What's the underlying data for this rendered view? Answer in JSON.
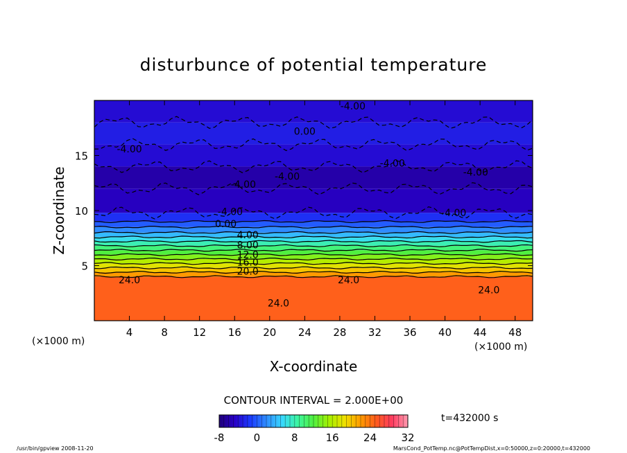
{
  "chart_data": {
    "type": "heatmap",
    "title": "disturbunce of potential temperature",
    "xlabel": "X-coordinate",
    "ylabel": "Z-coordinate",
    "x_unit": "(×1000 m)",
    "y_unit": "(×1000 m)",
    "xlim": [
      0,
      50
    ],
    "ylim": [
      0,
      20
    ],
    "xticks": [
      4,
      8,
      12,
      16,
      20,
      24,
      28,
      32,
      36,
      40,
      44,
      48
    ],
    "yticks": [
      5,
      10,
      15
    ],
    "layers": [
      {
        "z_from": 0.0,
        "z_to": 4.0,
        "value": 25
      },
      {
        "z_from": 4.0,
        "z_to": 4.4,
        "value": 22
      },
      {
        "z_from": 4.4,
        "z_to": 4.8,
        "value": 20
      },
      {
        "z_from": 4.8,
        "z_to": 5.2,
        "value": 18
      },
      {
        "z_from": 5.2,
        "z_to": 5.6,
        "value": 16
      },
      {
        "z_from": 5.6,
        "z_to": 6.0,
        "value": 14
      },
      {
        "z_from": 6.0,
        "z_to": 6.4,
        "value": 12
      },
      {
        "z_from": 6.4,
        "z_to": 6.8,
        "value": 10
      },
      {
        "z_from": 6.8,
        "z_to": 7.2,
        "value": 8
      },
      {
        "z_from": 7.2,
        "z_to": 7.6,
        "value": 6
      },
      {
        "z_from": 7.6,
        "z_to": 8.0,
        "value": 4
      },
      {
        "z_from": 8.0,
        "z_to": 8.5,
        "value": 2
      },
      {
        "z_from": 8.5,
        "z_to": 9.0,
        "value": 0
      },
      {
        "z_from": 9.0,
        "z_to": 9.8,
        "value": -2
      },
      {
        "z_from": 9.8,
        "z_to": 12.0,
        "value": -5
      },
      {
        "z_from": 12.0,
        "z_to": 14.0,
        "value": -6
      },
      {
        "z_from": 14.0,
        "z_to": 16.0,
        "value": -4
      },
      {
        "z_from": 16.0,
        "z_to": 18.0,
        "value": -3
      },
      {
        "z_from": 18.0,
        "z_to": 20.0,
        "value": -4
      }
    ],
    "contour_labels": [
      {
        "text": "-4.00",
        "x": 29.5,
        "z": 19.5
      },
      {
        "text": "0.00",
        "x": 24.0,
        "z": 17.2
      },
      {
        "text": "-4.00",
        "x": 4.0,
        "z": 15.6
      },
      {
        "text": "-4.00",
        "x": 34.0,
        "z": 14.3
      },
      {
        "text": "-4.00",
        "x": 22.0,
        "z": 13.1
      },
      {
        "text": "-4.00",
        "x": 43.5,
        "z": 13.5
      },
      {
        "text": "-4.00",
        "x": 17.0,
        "z": 12.4
      },
      {
        "text": "-4.00",
        "x": 15.5,
        "z": 9.9
      },
      {
        "text": "-4.00",
        "x": 41.0,
        "z": 9.8
      },
      {
        "text": "0.00",
        "x": 15.0,
        "z": 8.8
      },
      {
        "text": "4.00",
        "x": 17.5,
        "z": 7.8
      },
      {
        "text": "8.00",
        "x": 17.5,
        "z": 6.9
      },
      {
        "text": "12.0",
        "x": 17.5,
        "z": 6.0
      },
      {
        "text": "16.0",
        "x": 17.5,
        "z": 5.3
      },
      {
        "text": "20.0",
        "x": 17.5,
        "z": 4.5
      },
      {
        "text": "24.0",
        "x": 4.0,
        "z": 3.7
      },
      {
        "text": "24.0",
        "x": 29.0,
        "z": 3.7
      },
      {
        "text": "24.0",
        "x": 21.0,
        "z": 1.6
      },
      {
        "text": "24.0",
        "x": 45.0,
        "z": 2.8
      }
    ],
    "colorbar": {
      "min": -8,
      "max": 32,
      "ticks": [
        -8,
        0,
        8,
        16,
        24,
        32
      ],
      "colors": [
        "#20007a",
        "#2800c8",
        "#1b3cff",
        "#2f8cff",
        "#38d8ff",
        "#3cf5a0",
        "#50f040",
        "#a6f000",
        "#f0e000",
        "#ff9a00",
        "#ff5a1e",
        "#ff3c60",
        "#ff9ab0"
      ]
    }
  },
  "contour_interval": "CONTOUR INTERVAL = 2.000E+00",
  "time_label": "t=432000 s",
  "footer_left": "/usr/bin/gpview  2008-11-20",
  "footer_right": "MarsCond_PotTemp.nc@PotTempDist,x=0:50000,z=0:20000,t=432000"
}
